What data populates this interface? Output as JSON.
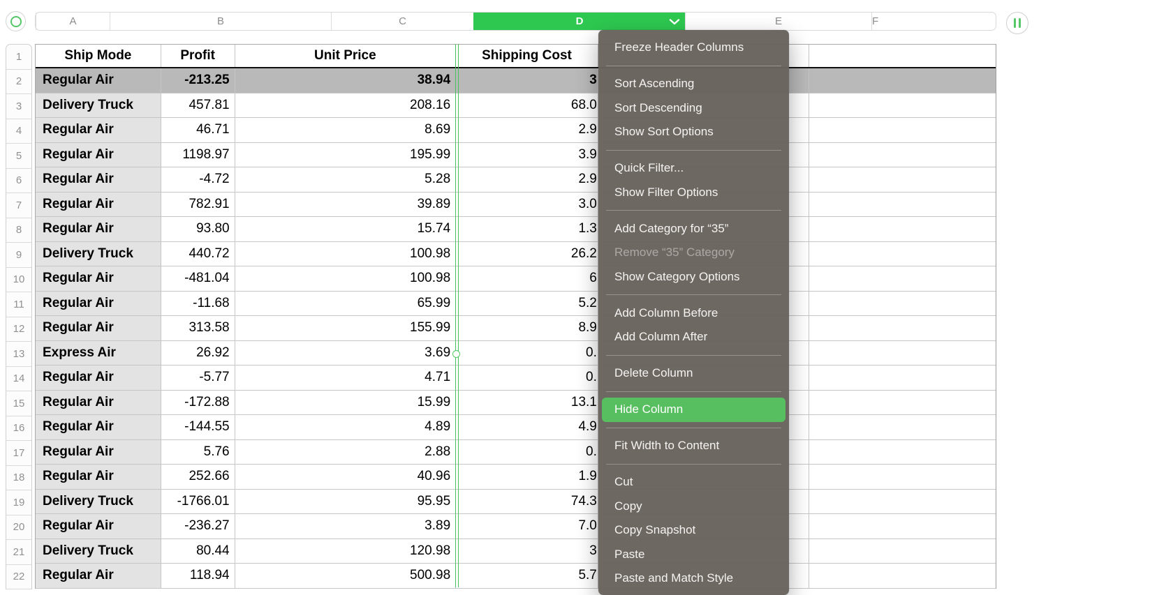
{
  "colors": {
    "selected_column_green": "#2ec850",
    "menu_highlight_green": "#57bf5f",
    "menu_background": "#69635e",
    "selected_row_gray": "#b9b9b9",
    "header_column_gray": "#e4e3e3"
  },
  "icons": {
    "corner": "select-table-circle-icon",
    "top_right": "pause-icon",
    "column_menu": "chevron-down-icon"
  },
  "column_header_bar": {
    "letters": [
      "A",
      "B",
      "C",
      "D",
      "E",
      "F"
    ],
    "selected": "D"
  },
  "row_numbers": [
    "1",
    "2",
    "3",
    "4",
    "5",
    "6",
    "7",
    "8",
    "9",
    "10",
    "11",
    "12",
    "13",
    "14",
    "15",
    "16",
    "17",
    "18",
    "19",
    "20",
    "21",
    "22"
  ],
  "table": {
    "header": {
      "ship_mode": "Ship Mode",
      "profit": "Profit",
      "unit_price": "Unit Price",
      "shipping_cost": "Shipping Cost"
    },
    "rows": [
      {
        "n": 2,
        "ship_mode": "Regular Air",
        "profit": "-213.25",
        "unit_price": "38.94",
        "shipping_cost": "3",
        "selected": true
      },
      {
        "n": 3,
        "ship_mode": "Delivery Truck",
        "profit": "457.81",
        "unit_price": "208.16",
        "shipping_cost": "68.0"
      },
      {
        "n": 4,
        "ship_mode": "Regular Air",
        "profit": "46.71",
        "unit_price": "8.69",
        "shipping_cost": "2.9"
      },
      {
        "n": 5,
        "ship_mode": "Regular Air",
        "profit": "1198.97",
        "unit_price": "195.99",
        "shipping_cost": "3.9"
      },
      {
        "n": 6,
        "ship_mode": "Regular Air",
        "profit": "-4.72",
        "unit_price": "5.28",
        "shipping_cost": "2.9"
      },
      {
        "n": 7,
        "ship_mode": "Regular Air",
        "profit": "782.91",
        "unit_price": "39.89",
        "shipping_cost": "3.0"
      },
      {
        "n": 8,
        "ship_mode": "Regular Air",
        "profit": "93.80",
        "unit_price": "15.74",
        "shipping_cost": "1.3"
      },
      {
        "n": 9,
        "ship_mode": "Delivery Truck",
        "profit": "440.72",
        "unit_price": "100.98",
        "shipping_cost": "26.2"
      },
      {
        "n": 10,
        "ship_mode": "Regular Air",
        "profit": "-481.04",
        "unit_price": "100.98",
        "shipping_cost": "6"
      },
      {
        "n": 11,
        "ship_mode": "Regular Air",
        "profit": "-11.68",
        "unit_price": "65.99",
        "shipping_cost": "5.2"
      },
      {
        "n": 12,
        "ship_mode": "Regular Air",
        "profit": "313.58",
        "unit_price": "155.99",
        "shipping_cost": "8.9"
      },
      {
        "n": 13,
        "ship_mode": "Express Air",
        "profit": "26.92",
        "unit_price": "3.69",
        "shipping_cost": "0."
      },
      {
        "n": 14,
        "ship_mode": "Regular Air",
        "profit": "-5.77",
        "unit_price": "4.71",
        "shipping_cost": "0."
      },
      {
        "n": 15,
        "ship_mode": "Regular Air",
        "profit": "-172.88",
        "unit_price": "15.99",
        "shipping_cost": "13.1"
      },
      {
        "n": 16,
        "ship_mode": "Regular Air",
        "profit": "-144.55",
        "unit_price": "4.89",
        "shipping_cost": "4.9"
      },
      {
        "n": 17,
        "ship_mode": "Regular Air",
        "profit": "5.76",
        "unit_price": "2.88",
        "shipping_cost": "0."
      },
      {
        "n": 18,
        "ship_mode": "Regular Air",
        "profit": "252.66",
        "unit_price": "40.96",
        "shipping_cost": "1.9"
      },
      {
        "n": 19,
        "ship_mode": "Delivery Truck",
        "profit": "-1766.01",
        "unit_price": "95.95",
        "shipping_cost": "74.3"
      },
      {
        "n": 20,
        "ship_mode": "Regular Air",
        "profit": "-236.27",
        "unit_price": "3.89",
        "shipping_cost": "7.0"
      },
      {
        "n": 21,
        "ship_mode": "Delivery Truck",
        "profit": "80.44",
        "unit_price": "120.98",
        "shipping_cost": "3"
      },
      {
        "n": 22,
        "ship_mode": "Regular Air",
        "profit": "118.94",
        "unit_price": "500.98",
        "shipping_cost": "5.7"
      }
    ]
  },
  "context_menu": {
    "items": [
      {
        "type": "item",
        "label": "Freeze Header Columns",
        "state": "normal"
      },
      {
        "type": "separator"
      },
      {
        "type": "item",
        "label": "Sort Ascending",
        "state": "normal"
      },
      {
        "type": "item",
        "label": "Sort Descending",
        "state": "normal"
      },
      {
        "type": "item",
        "label": "Show Sort Options",
        "state": "normal"
      },
      {
        "type": "separator"
      },
      {
        "type": "item",
        "label": "Quick Filter...",
        "state": "normal"
      },
      {
        "type": "item",
        "label": "Show Filter Options",
        "state": "normal"
      },
      {
        "type": "separator"
      },
      {
        "type": "item",
        "label": "Add Category for “35”",
        "state": "normal"
      },
      {
        "type": "item",
        "label": "Remove “35” Category",
        "state": "disabled"
      },
      {
        "type": "item",
        "label": "Show Category Options",
        "state": "normal"
      },
      {
        "type": "separator"
      },
      {
        "type": "item",
        "label": "Add Column Before",
        "state": "normal"
      },
      {
        "type": "item",
        "label": "Add Column After",
        "state": "normal"
      },
      {
        "type": "separator"
      },
      {
        "type": "item",
        "label": "Delete Column",
        "state": "normal"
      },
      {
        "type": "separator"
      },
      {
        "type": "item",
        "label": "Hide Column",
        "state": "highlighted"
      },
      {
        "type": "separator"
      },
      {
        "type": "item",
        "label": "Fit Width to Content",
        "state": "normal"
      },
      {
        "type": "separator"
      },
      {
        "type": "item",
        "label": "Cut",
        "state": "normal"
      },
      {
        "type": "item",
        "label": "Copy",
        "state": "normal"
      },
      {
        "type": "item",
        "label": "Copy Snapshot",
        "state": "normal"
      },
      {
        "type": "item",
        "label": "Paste",
        "state": "normal"
      },
      {
        "type": "item",
        "label": "Paste and Match Style",
        "state": "normal"
      }
    ]
  }
}
